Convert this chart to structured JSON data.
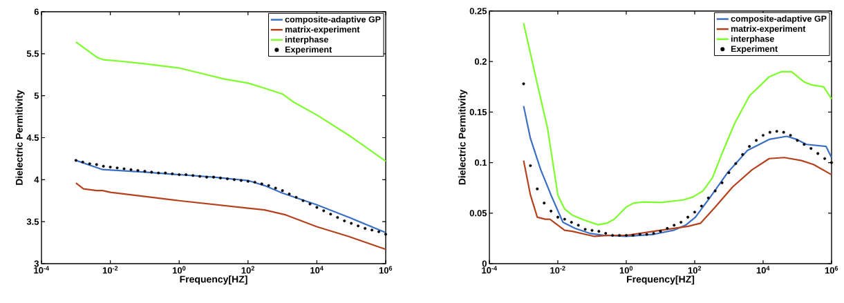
{
  "chart_data": [
    {
      "type": "line",
      "xlabel": "Frequency[HZ]",
      "ylabel": "Dielectric Permitivity",
      "log": "x",
      "legend": "top right",
      "xlim": [
        0.0001,
        1000000
      ],
      "xticks": [
        {
          "value": 0.0001,
          "label": "10$^{-4}$"
        },
        {
          "value": 0.01,
          "label": "10$^{-2}$"
        },
        {
          "value": 1,
          "label": "10$^{0}$"
        },
        {
          "value": 100,
          "label": "10$^{2}$"
        },
        {
          "value": 10000,
          "label": "10$^{4}$"
        },
        {
          "value": 1000000,
          "label": "10$^{6}$"
        }
      ],
      "ylim": [
        3,
        6
      ],
      "yticks": [
        3,
        3.5,
        4,
        4.5,
        5,
        5.5,
        6
      ],
      "series": [
        {
          "name": "composite-adaptive GP",
          "color": "#3a6fc4",
          "x": [
            0.001,
            0.006,
            0.1,
            1,
            10,
            100,
            300,
            1000,
            10000,
            100000,
            1000000
          ],
          "values": [
            4.23,
            4.12,
            4.09,
            4.06,
            4.03,
            3.99,
            3.93,
            3.84,
            3.7,
            3.54,
            3.37
          ]
        },
        {
          "name": "matrix-experiment",
          "color": "#b5401c",
          "x": [
            0.001,
            0.00166,
            0.004,
            0.006,
            0.01,
            0.16,
            1,
            100,
            300,
            1260,
            10000,
            89000,
            1000000
          ],
          "values": [
            3.96,
            3.89,
            3.87,
            3.87,
            3.85,
            3.79,
            3.75,
            3.66,
            3.64,
            3.58,
            3.44,
            3.32,
            3.17
          ]
        },
        {
          "name": "interphase",
          "color": "#7cfc2a",
          "x": [
            0.001,
            0.004,
            0.006,
            0.02,
            0.1,
            0.4,
            1,
            5,
            20,
            100,
            300,
            1000,
            2000,
            10000,
            100000,
            1000000
          ],
          "values": [
            5.64,
            5.46,
            5.43,
            5.41,
            5.38,
            5.35,
            5.33,
            5.26,
            5.2,
            5.15,
            5.09,
            5.02,
            4.93,
            4.77,
            4.51,
            4.22
          ]
        },
        {
          "name": "Experiment",
          "type": "scatter",
          "marker": "circle",
          "color": "#000000",
          "x": [
            0.001,
            0.00158,
            0.00251,
            0.00398,
            0.00631,
            0.01,
            0.0158,
            0.0251,
            0.0398,
            0.0631,
            0.1,
            0.158,
            0.251,
            0.398,
            0.631,
            1,
            1.58,
            2.51,
            3.98,
            6.31,
            10,
            15.8,
            25.1,
            39.8,
            63.1,
            100,
            158,
            251,
            398,
            631,
            1000,
            1580,
            2510,
            3980,
            6310,
            10000,
            15800,
            25100,
            39800,
            63100,
            100000,
            158000,
            251000,
            398000,
            631000,
            1000000
          ],
          "values": [
            4.23,
            4.21,
            4.19,
            4.18,
            4.16,
            4.15,
            4.14,
            4.13,
            4.12,
            4.11,
            4.1,
            4.09,
            4.08,
            4.08,
            4.07,
            4.06,
            4.06,
            4.05,
            4.04,
            4.03,
            4.03,
            4.02,
            4.01,
            4.0,
            3.99,
            3.98,
            3.97,
            3.95,
            3.93,
            3.9,
            3.87,
            3.83,
            3.79,
            3.75,
            3.71,
            3.67,
            3.63,
            3.59,
            3.55,
            3.51,
            3.48,
            3.45,
            3.42,
            3.4,
            3.38,
            3.35
          ]
        }
      ]
    },
    {
      "type": "line",
      "xlabel": "Frequency[HZ]",
      "ylabel": "Dielectric Permitivity",
      "log": "x",
      "legend": "top right",
      "xlim": [
        0.0001,
        1000000
      ],
      "xticks": [
        {
          "value": 0.0001,
          "label": "10$^{-4}$"
        },
        {
          "value": 0.01,
          "label": "10$^{-2}$"
        },
        {
          "value": 1,
          "label": "10$^{0}$"
        },
        {
          "value": 100,
          "label": "10$^{2}$"
        },
        {
          "value": 10000,
          "label": "10$^{4}$"
        },
        {
          "value": 1000000,
          "label": "10$^{6}$"
        }
      ],
      "ylim": [
        0,
        0.25
      ],
      "yticks": [
        0,
        0.05,
        0.1,
        0.15,
        0.2,
        0.25
      ],
      "series": [
        {
          "name": "composite-adaptive GP",
          "color": "#3a6fc4",
          "x": [
            0.001,
            0.00158,
            0.00316,
            0.0063,
            0.0141,
            0.0316,
            0.085,
            0.23,
            1,
            6.3,
            24,
            54,
            105,
            288,
            912,
            3470,
            15100,
            49000,
            95500,
            186000,
            692000,
            1000000
          ],
          "values": [
            0.156,
            0.124,
            0.093,
            0.068,
            0.041,
            0.035,
            0.03,
            0.028,
            0.027,
            0.029,
            0.033,
            0.038,
            0.046,
            0.066,
            0.09,
            0.112,
            0.123,
            0.126,
            0.123,
            0.118,
            0.116,
            0.105
          ]
        },
        {
          "name": "matrix-experiment",
          "color": "#b5401c",
          "x": [
            0.001,
            0.00158,
            0.00251,
            0.00427,
            0.00589,
            0.0158,
            0.0263,
            0.117,
            0.316,
            1,
            6.3,
            64.6,
            148,
            398,
            1290,
            4790,
            15100,
            41700,
            132000,
            302000,
            1000000
          ],
          "values": [
            0.102,
            0.068,
            0.046,
            0.044,
            0.044,
            0.033,
            0.032,
            0.027,
            0.028,
            0.028,
            0.032,
            0.037,
            0.04,
            0.056,
            0.076,
            0.093,
            0.104,
            0.105,
            0.102,
            0.098,
            0.088
          ]
        },
        {
          "name": "interphase",
          "color": "#7cfc2a",
          "x": [
            0.001,
            0.00251,
            0.005,
            0.01,
            0.0158,
            0.0263,
            0.0603,
            0.151,
            0.269,
            0.447,
            1,
            1.66,
            3.24,
            10,
            45.7,
            89,
            174,
            331,
            646,
            1480,
            3980,
            15100,
            34700,
            67600,
            155000,
            257000,
            589000,
            1000000
          ],
          "values": [
            0.238,
            0.178,
            0.134,
            0.068,
            0.054,
            0.048,
            0.043,
            0.0385,
            0.04,
            0.044,
            0.056,
            0.06,
            0.061,
            0.0605,
            0.063,
            0.066,
            0.072,
            0.085,
            0.11,
            0.139,
            0.166,
            0.185,
            0.19,
            0.19,
            0.18,
            0.177,
            0.175,
            0.163
          ]
        },
        {
          "name": "Experiment",
          "type": "scatter",
          "marker": "circle",
          "color": "#000000",
          "x": [
            0.001,
            0.00158,
            0.00251,
            0.00398,
            0.00631,
            0.01,
            0.0158,
            0.0251,
            0.0398,
            0.0631,
            0.1,
            0.158,
            0.251,
            0.398,
            0.631,
            1,
            1.58,
            2.51,
            3.98,
            6.31,
            10,
            15.8,
            25.1,
            39.8,
            63.1,
            100,
            158,
            251,
            398,
            631,
            1000,
            1580,
            2510,
            3980,
            6310,
            10000,
            15800,
            25100,
            39800,
            63100,
            100000,
            158000,
            251000,
            398000,
            631000,
            1000000
          ],
          "values": [
            0.178,
            0.097,
            0.074,
            0.06,
            0.052,
            0.046,
            0.044,
            0.041,
            0.038,
            0.034,
            0.033,
            0.032,
            0.03,
            0.028,
            0.028,
            0.028,
            0.028,
            0.029,
            0.029,
            0.03,
            0.032,
            0.035,
            0.038,
            0.041,
            0.046,
            0.051,
            0.057,
            0.065,
            0.072,
            0.08,
            0.09,
            0.099,
            0.108,
            0.116,
            0.122,
            0.127,
            0.13,
            0.131,
            0.13,
            0.127,
            0.122,
            0.118,
            0.114,
            0.109,
            0.104,
            0.1
          ]
        }
      ]
    }
  ]
}
